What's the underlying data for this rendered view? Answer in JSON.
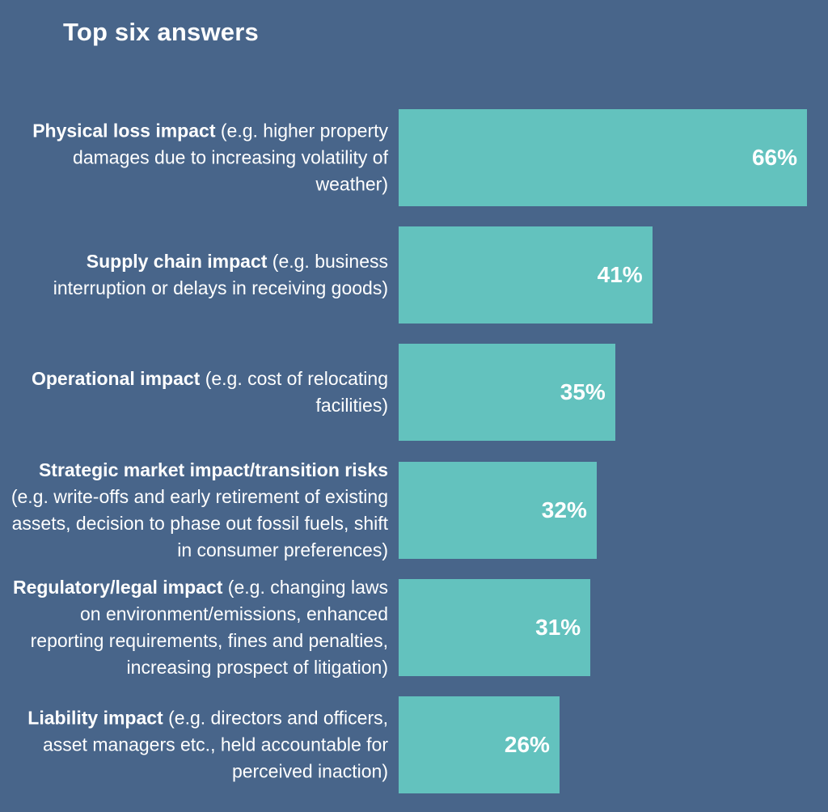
{
  "chart_data": {
    "type": "bar",
    "orientation": "horizontal",
    "title": "Top six answers",
    "xlabel": "",
    "ylabel": "",
    "xlim": [
      0,
      66
    ],
    "grid": false,
    "colors": {
      "background": "#48658a",
      "bar": "#63c2be",
      "text": "#ffffff"
    },
    "categories": [
      {
        "bold": "Physical loss impact",
        "rest": " (e.g. higher property damages due to increasing volatility of weather)"
      },
      {
        "bold": "Supply chain impact",
        "rest": " (e.g. business interruption or delays in receiving goods)"
      },
      {
        "bold": "Operational impact",
        "rest": " (e.g. cost of relocating facilities)"
      },
      {
        "bold": "Strategic market impact/transition risks",
        "rest": " (e.g. write-offs and early retirement of existing assets, decision to phase out fossil fuels, shift in consumer preferences)"
      },
      {
        "bold": "Regulatory/legal impact",
        "rest": " (e.g. changing laws on environment/emissions, enhanced reporting requirements, fines and penalties, increasing prospect of litigation)"
      },
      {
        "bold": "Liability impact",
        "rest": " (e.g. directors and officers, asset managers etc., held accountable for perceived inaction)"
      }
    ],
    "values": [
      66,
      41,
      35,
      32,
      31,
      26
    ],
    "value_labels": [
      "66%",
      "41%",
      "35%",
      "32%",
      "31%",
      "26%"
    ]
  }
}
